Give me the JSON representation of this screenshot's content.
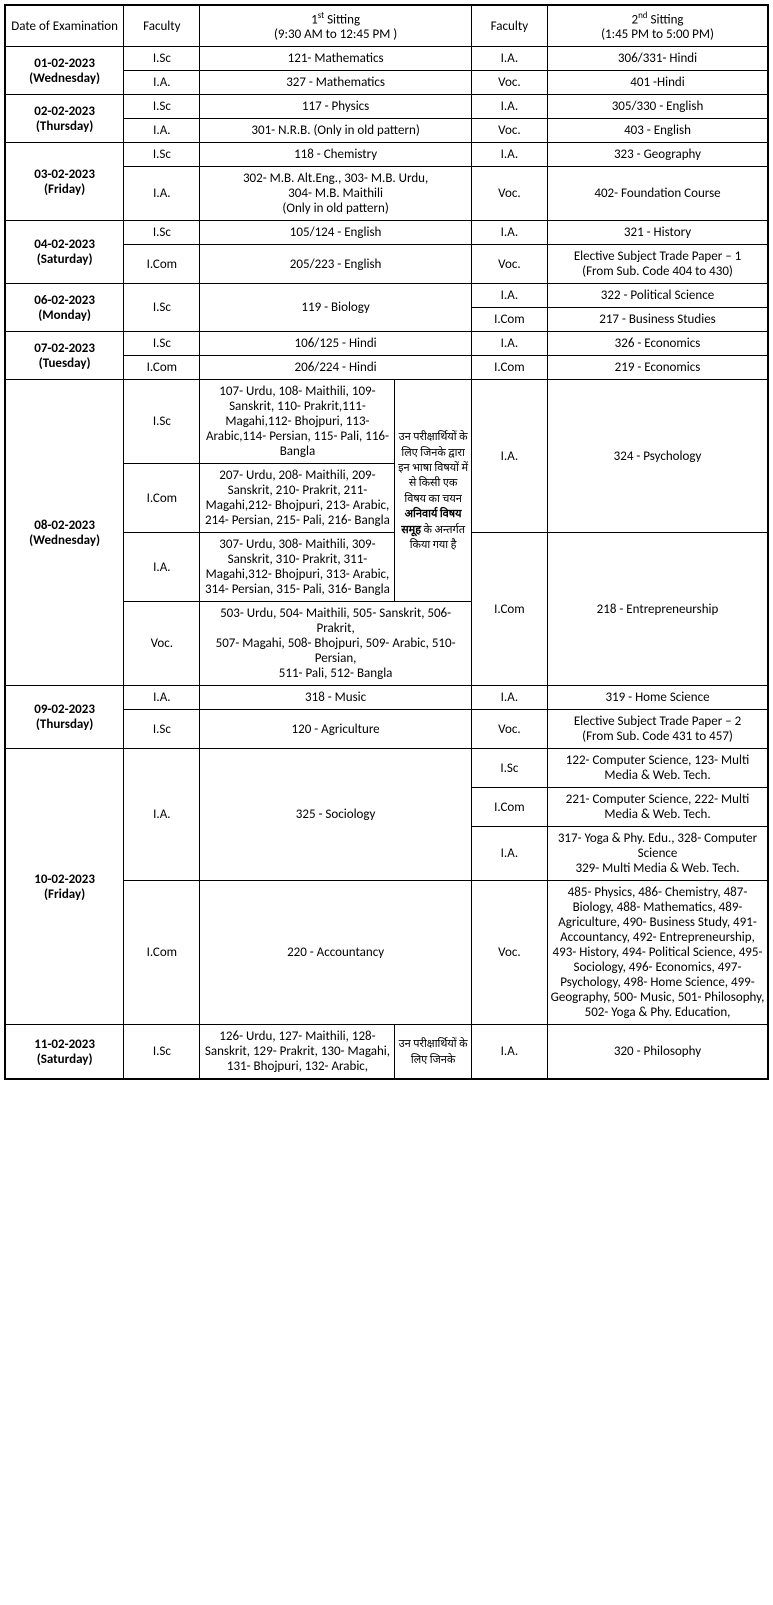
{
  "columns": {
    "date": "Date of Examination",
    "faculty": "Faculty",
    "sitting1_line1_pre": "1",
    "sitting1_line1_sup": "st",
    "sitting1_line1_post": " Sitting",
    "sitting1_line2": "(9:30 AM to 12:45 PM )",
    "sitting2_line1_pre": "2",
    "sitting2_line1_sup": "nd",
    "sitting2_line1_post": "  Sitting",
    "sitting2_line2": "(1:45 PM to 5:00 PM)"
  },
  "dates": {
    "d01": "01-02-2023",
    "d01day": "(Wednesday)",
    "d02": "02-02-2023",
    "d02day": "(Thursday)",
    "d03": "03-02-2023",
    "d03day": "(Friday)",
    "d04": "04-02-2023",
    "d04day": "(Saturday)",
    "d06": "06-02-2023",
    "d06day": "(Monday)",
    "d07": "07-02-2023",
    "d07day": "(Tuesday)",
    "d08": "08-02-2023",
    "d08day": "(Wednesday)",
    "d09": "09-02-2023",
    "d09day": "(Thursday)",
    "d10": "10-02-2023",
    "d10day": "(Friday)",
    "d11": "11-02-2023",
    "d11day": "(Saturday)"
  },
  "fac": {
    "isc": "I.Sc",
    "ia": "I.A.",
    "icom": "I.Com",
    "voc": "Voc."
  },
  "subj": {
    "r1a": "121- Mathematics",
    "r1b": "306/331- Hindi",
    "r2a": "327 - Mathematics",
    "r2b": "401 -Hindi",
    "r3a": "117 - Physics",
    "r3b": "305/330 - English",
    "r4a": "301- N.R.B. (Only in old pattern)",
    "r4b": "403 - English",
    "r5a": "118 - Chemistry",
    "r5b": "323 - Geography",
    "r6a_l1": "302- M.B. Alt.Eng., 303- M.B. Urdu,",
    "r6a_l2": "304- M.B. Maithili",
    "r6a_l3": "(Only in old pattern)",
    "r6b": "402- Foundation Course",
    "r7a": "105/124 - English",
    "r7b": "321 - History",
    "r8a": "205/223 - English",
    "r8b_l1": "Elective Subject Trade Paper – 1",
    "r8b_l2": "(From Sub. Code 404 to 430)",
    "r9a": "119 - Biology",
    "r9b": "322 - Political Science",
    "r10b": "217 - Business Studies",
    "r11a": "106/125 - Hindi",
    "r11b": "326 - Economics",
    "r12a": "206/224 - Hindi",
    "r12b": "219 - Economics",
    "r13a": "107- Urdu, 108- Maithili, 109- Sanskrit, 110- Prakrit,111- Magahi,112- Bhojpuri, 113- Arabic,114- Persian, 115- Pali, 116- Bangla",
    "r13b": "324 - Psychology",
    "r14a": "207- Urdu, 208- Maithili, 209- Sanskrit, 210- Prakrit, 211- Magahi,212- Bhojpuri, 213- Arabic, 214- Persian, 215- Pali, 216- Bangla",
    "r15a": "307- Urdu, 308- Maithili, 309- Sanskrit, 310- Prakrit, 311- Magahi,312- Bhojpuri, 313- Arabic, 314- Persian, 315- Pali, 316- Bangla",
    "r15b": "218 - Entrepreneurship",
    "r16a_l1": "503- Urdu, 504- Maithili, 505- Sanskrit, 506- Prakrit,",
    "r16a_l2": "507- Magahi, 508- Bhojpuri, 509- Arabic, 510- Persian,",
    "r16a_l3": "511- Pali, 512- Bangla",
    "note_l1": "उन परीक्षार्थियों के लिए जिनके द्वारा इन भाषा विषयों में से किसी एक विषय का चयन ",
    "note_bold": "अनिवार्य विषय समूह",
    "note_l2": " के अन्तर्गत किया गया है",
    "r17a": "318 - Music",
    "r17b": "319 - Home Science",
    "r18a": "120 - Agriculture",
    "r18b_l1": "Elective Subject Trade Paper – 2",
    "r18b_l2": "(From Sub. Code 431 to 457)",
    "r19a": "325 - Sociology",
    "r19b": "122- Computer Science, 123- Multi Media & Web. Tech.",
    "r20b": "221- Computer Science, 222- Multi Media & Web. Tech.",
    "r21b_l1": "317- Yoga & Phy. Edu., 328- Computer Science",
    "r21b_l2": "329- Multi Media & Web. Tech.",
    "r22a": "220  - Accountancy",
    "r22b": "485- Physics, 486- Chemistry, 487- Biology, 488- Mathematics, 489- Agriculture, 490- Business Study, 491- Accountancy, 492- Entrepreneurship, 493- History, 494- Political Science, 495- Sociology, 496- Economics, 497- Psychology, 498- Home Science, 499- Geography, 500- Music, 501- Philosophy, 502- Yoga & Phy. Education,",
    "r23a": "126- Urdu, 127- Maithili, 128- Sanskrit, 129- Prakrit, 130- Magahi, 131- Bhojpuri, 132- Arabic,",
    "r23note": "उन परीक्षार्थियों के लिए जिनके",
    "r23b": "320  - Philosophy"
  },
  "colwidths": {
    "date": "14%",
    "fac": "9%",
    "sub1a": "23%",
    "sub1b": "9%",
    "fac2": "9%",
    "sub2": "26%"
  }
}
